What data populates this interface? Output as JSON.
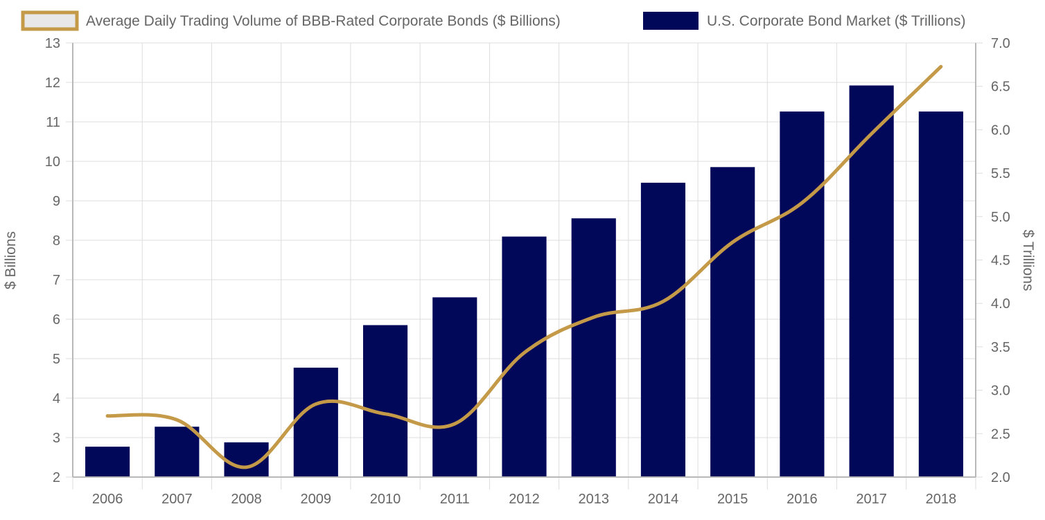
{
  "chart_data": {
    "type": "bar",
    "categories": [
      "2006",
      "2007",
      "2008",
      "2009",
      "2010",
      "2011",
      "2012",
      "2013",
      "2014",
      "2015",
      "2016",
      "2017",
      "2018"
    ],
    "series": [
      {
        "name": "Average Daily Trading Volume of BBB-Rated Corporate Bonds ($ Billions)",
        "type": "line",
        "axis": "left",
        "color": "#C49A48",
        "values": [
          3.55,
          3.45,
          2.25,
          3.85,
          3.6,
          3.35,
          5.15,
          6.05,
          6.45,
          7.95,
          8.95,
          10.7,
          12.4
        ]
      },
      {
        "name": "U.S. Corporate Bond Market ($ Trillions)",
        "type": "bar",
        "axis": "right",
        "color": "#010759",
        "values": [
          2.35,
          2.58,
          2.4,
          3.26,
          3.75,
          4.07,
          4.77,
          4.98,
          5.39,
          5.57,
          6.21,
          6.51,
          6.21
        ]
      }
    ],
    "y_left": {
      "label": "$ Billions",
      "ylim": [
        2,
        13
      ],
      "ticks": [
        "2",
        "3",
        "4",
        "5",
        "6",
        "7",
        "8",
        "9",
        "10",
        "11",
        "12",
        "13"
      ]
    },
    "y_right": {
      "label": "$ Trillions",
      "ylim": [
        2.0,
        7.0
      ],
      "ticks": [
        "2.0",
        "2.5",
        "3.0",
        "3.5",
        "4.0",
        "4.5",
        "5.0",
        "5.5",
        "6.0",
        "6.5",
        "7.0"
      ]
    },
    "grid": true,
    "legend": "top"
  }
}
